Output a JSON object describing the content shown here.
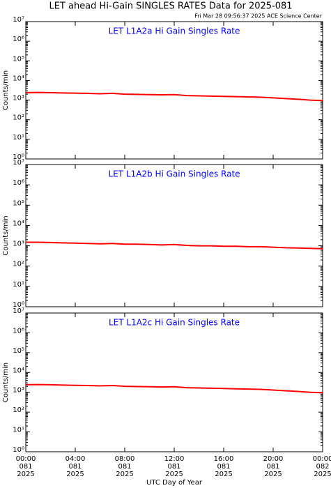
{
  "title": "LET ahead Hi-Gain SINGLES RATES Data for 2025-081",
  "subtitle": "Fri Mar 28 09:56:37 2025 ACE Science Center",
  "xlabel": "UTC Day of Year",
  "chart_data": [
    {
      "type": "line",
      "title": "LET L1A2a Hi Gain Singles Rate",
      "ylabel": "Counts/min",
      "color": "#ff0000",
      "log": true,
      "xlim": [
        0,
        24
      ],
      "ylim": [
        1,
        10000000
      ],
      "yticks": [
        {
          "value": 1,
          "label": "10⁰"
        },
        {
          "value": 10,
          "label": "10¹"
        },
        {
          "value": 100,
          "label": "10²"
        },
        {
          "value": 1000,
          "label": "10³"
        },
        {
          "value": 10000,
          "label": "10⁴"
        },
        {
          "value": 100000,
          "label": "10⁵"
        },
        {
          "value": 1000000,
          "label": "10⁶"
        },
        {
          "value": 10000000,
          "label": "10⁷"
        }
      ],
      "x": [
        0,
        1,
        2,
        3,
        4,
        5,
        6,
        7,
        8,
        9,
        10,
        11,
        12,
        13,
        14,
        15,
        16,
        17,
        18,
        19,
        20,
        21,
        22,
        23,
        24
      ],
      "values": [
        2400,
        2450,
        2400,
        2300,
        2250,
        2200,
        2100,
        2200,
        2000,
        1950,
        1900,
        1850,
        1900,
        1700,
        1650,
        1600,
        1550,
        1500,
        1450,
        1400,
        1300,
        1200,
        1100,
        1000,
        950
      ]
    },
    {
      "type": "line",
      "title": "LET L1A2b Hi Gain Singles Rate",
      "ylabel": "Counts/min",
      "color": "#ff0000",
      "log": true,
      "xlim": [
        0,
        24
      ],
      "ylim": [
        1,
        10000000
      ],
      "yticks": [
        {
          "value": 1,
          "label": "10⁰"
        },
        {
          "value": 10,
          "label": "10¹"
        },
        {
          "value": 100,
          "label": "10²"
        },
        {
          "value": 1000,
          "label": "10³"
        },
        {
          "value": 10000,
          "label": "10⁴"
        },
        {
          "value": 100000,
          "label": "10⁵"
        },
        {
          "value": 1000000,
          "label": "10⁶"
        },
        {
          "value": 10000000,
          "label": "10⁷"
        }
      ],
      "x": [
        0,
        1,
        2,
        3,
        4,
        5,
        6,
        7,
        8,
        9,
        10,
        11,
        12,
        13,
        14,
        15,
        16,
        17,
        18,
        19,
        20,
        21,
        22,
        23,
        24
      ],
      "values": [
        1500,
        1500,
        1450,
        1400,
        1350,
        1300,
        1250,
        1300,
        1200,
        1200,
        1150,
        1100,
        1150,
        1050,
        1000,
        1000,
        950,
        950,
        900,
        900,
        850,
        800,
        780,
        750,
        720
      ]
    },
    {
      "type": "line",
      "title": "LET L1A2c Hi Gain Singles Rate",
      "ylabel": "Counts/min",
      "color": "#ff0000",
      "log": true,
      "xlim": [
        0,
        24
      ],
      "ylim": [
        1,
        10000000
      ],
      "yticks": [
        {
          "value": 1,
          "label": "10⁰"
        },
        {
          "value": 10,
          "label": "10¹"
        },
        {
          "value": 100,
          "label": "10²"
        },
        {
          "value": 1000,
          "label": "10³"
        },
        {
          "value": 10000,
          "label": "10⁴"
        },
        {
          "value": 100000,
          "label": "10⁵"
        },
        {
          "value": 1000000,
          "label": "10⁶"
        },
        {
          "value": 10000000,
          "label": "10⁷"
        }
      ],
      "xticks": [
        {
          "value": 0,
          "label": "00:00"
        },
        {
          "value": 4,
          "label": "04:00"
        },
        {
          "value": 8,
          "label": "08:00"
        },
        {
          "value": 12,
          "label": "12:00"
        },
        {
          "value": 16,
          "label": "16:00"
        },
        {
          "value": 20,
          "label": "20:00"
        },
        {
          "value": 24,
          "label": "00:00"
        }
      ],
      "xtick_days": [
        "081",
        "081",
        "081",
        "081",
        "081",
        "081",
        "082"
      ],
      "xtick_years": [
        "2025",
        "2025",
        "2025",
        "2025",
        "2025",
        "2025",
        "2025"
      ],
      "x": [
        0,
        1,
        2,
        3,
        4,
        5,
        6,
        7,
        8,
        9,
        10,
        11,
        12,
        13,
        14,
        15,
        16,
        17,
        18,
        19,
        20,
        21,
        22,
        23,
        24
      ],
      "values": [
        2400,
        2450,
        2400,
        2300,
        2250,
        2200,
        2100,
        2200,
        2000,
        1950,
        1900,
        1850,
        1900,
        1700,
        1650,
        1600,
        1550,
        1500,
        1450,
        1400,
        1300,
        1200,
        1100,
        1000,
        950
      ]
    }
  ]
}
